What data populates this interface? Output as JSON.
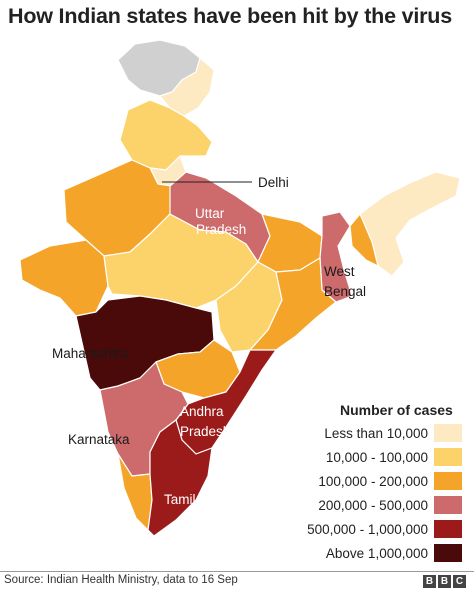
{
  "title": "How Indian states have been hit by the virus",
  "labels": {
    "delhi": "Delhi",
    "uttar_pradesh": [
      "Uttar",
      "Pradesh"
    ],
    "west_bengal": [
      "West",
      "Bengal"
    ],
    "maharashtra": "Maharashtra",
    "andhra_pradesh": [
      "Andhra",
      "Pradesh"
    ],
    "karnataka": "Karnataka",
    "tamil_nadu": "Tamil Nadu"
  },
  "legend": {
    "title": "Number of cases",
    "items": [
      {
        "label": "Less than 10,000",
        "color": "#fde9c2"
      },
      {
        "label": "10,000 - 100,000",
        "color": "#fcd36a"
      },
      {
        "label": "100,000 - 200,000",
        "color": "#f5a42a"
      },
      {
        "label": "200,000 - 500,000",
        "color": "#cd6a6c"
      },
      {
        "label": "500,000 - 1,000,000",
        "color": "#9b1b1b"
      },
      {
        "label": "Above  1,000,000",
        "color": "#4a0a0a"
      }
    ]
  },
  "colors": {
    "no_data": "#d0d0d0",
    "border": "#ffffff"
  },
  "source": "Source: Indian Health Ministry, data to 16 Sep",
  "brand": [
    "B",
    "B",
    "C"
  ]
}
